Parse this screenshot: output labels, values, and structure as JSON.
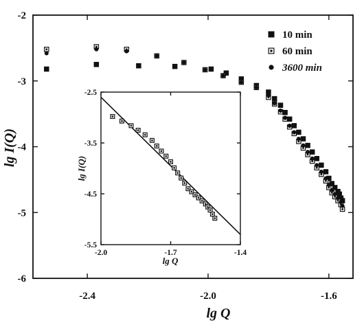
{
  "chart_data": [
    {
      "type": "scatter",
      "title": "",
      "xlabel": "lg  Q",
      "ylabel": "lg  I(Q)",
      "xlim": [
        -2.58,
        -1.52
      ],
      "ylim": [
        -6,
        -2
      ],
      "xticks": [
        "-2.4",
        "-2.0",
        "-1.6"
      ],
      "xtick_values": [
        -2.4,
        -2.0,
        -1.6
      ],
      "yticks": [
        "-2",
        "-3",
        "-4",
        "-5",
        "-6"
      ],
      "ytick_values": [
        -2,
        -3,
        -4,
        -5,
        -6
      ],
      "legend": "top-right",
      "series": [
        {
          "name": "10 min",
          "marker": "square-filled",
          "x": [
            -2.535,
            -2.37,
            -2.23,
            -2.11,
            -1.99,
            -1.94,
            -1.89,
            -1.84,
            -1.8,
            -1.78,
            -1.76,
            -1.745,
            -1.73,
            -1.715,
            -1.7,
            -1.685,
            -1.67,
            -1.655,
            -1.64,
            -1.625,
            -1.61,
            -1.6,
            -1.59,
            -1.58,
            -1.57,
            -1.565,
            -1.56,
            -1.555
          ],
          "y": [
            -2.82,
            -2.75,
            -2.77,
            -2.78,
            -2.82,
            -2.88,
            -2.97,
            -3.07,
            -3.17,
            -3.27,
            -3.37,
            -3.48,
            -3.58,
            -3.68,
            -3.78,
            -3.88,
            -3.98,
            -4.08,
            -4.18,
            -4.28,
            -4.38,
            -4.48,
            -4.56,
            -4.62,
            -4.68,
            -4.72,
            -4.78,
            -4.82
          ]
        },
        {
          "name": "60 min",
          "marker": "square-open",
          "x": [
            -2.535,
            -2.37,
            -2.27,
            -2.17,
            -2.08,
            -2.01,
            -1.95,
            -1.89,
            -1.84,
            -1.8,
            -1.78,
            -1.76,
            -1.745,
            -1.73,
            -1.715,
            -1.7,
            -1.685,
            -1.67,
            -1.655,
            -1.64,
            -1.625,
            -1.61,
            -1.6,
            -1.59,
            -1.58,
            -1.57,
            -1.56,
            -1.555
          ],
          "y": [
            -2.52,
            -2.48,
            -2.52,
            -2.62,
            -2.72,
            -2.83,
            -2.92,
            -3.02,
            -3.1,
            -3.25,
            -3.35,
            -3.47,
            -3.58,
            -3.7,
            -3.8,
            -3.92,
            -4.02,
            -4.12,
            -4.22,
            -4.32,
            -4.42,
            -4.52,
            -4.62,
            -4.7,
            -4.76,
            -4.82,
            -4.88,
            -4.95
          ]
        },
        {
          "name": "3600 min",
          "marker": "circle-filled",
          "x": [
            -2.535,
            -2.37,
            -2.27,
            -2.17,
            -2.08,
            -2.01,
            -1.95,
            -1.89,
            -1.84,
            -1.8,
            -1.78,
            -1.76,
            -1.745,
            -1.73,
            -1.715,
            -1.7,
            -1.685,
            -1.67,
            -1.655,
            -1.64,
            -1.625,
            -1.61,
            -1.6,
            -1.59,
            -1.58,
            -1.57,
            -1.56,
            -1.555
          ],
          "y": [
            -2.58,
            -2.52,
            -2.55,
            -2.62,
            -2.72,
            -2.83,
            -2.92,
            -3.02,
            -3.1,
            -3.22,
            -3.34,
            -3.45,
            -3.56,
            -3.68,
            -3.78,
            -3.88,
            -3.98,
            -4.08,
            -4.18,
            -4.28,
            -4.38,
            -4.48,
            -4.58,
            -4.66,
            -4.72,
            -4.78,
            -4.84,
            -4.9
          ]
        }
      ]
    },
    {
      "type": "scatter",
      "title": "",
      "xlabel": "lg  Q",
      "ylabel": "lg I(Q)",
      "xlim": [
        -2.0,
        -1.4
      ],
      "ylim": [
        -5.5,
        -2.5
      ],
      "xticks": [
        "-2.0",
        "-1.7",
        "-1.4"
      ],
      "xtick_values": [
        -2.0,
        -1.7,
        -1.4
      ],
      "yticks": [
        "-2.5",
        "-3.5",
        "-4.5",
        "-5.5"
      ],
      "ytick_values": [
        -2.5,
        -3.5,
        -4.5,
        -5.5
      ],
      "series": [
        {
          "marker": "square-open",
          "x": [
            -1.95,
            -1.91,
            -1.87,
            -1.84,
            -1.81,
            -1.78,
            -1.76,
            -1.74,
            -1.72,
            -1.7,
            -1.685,
            -1.67,
            -1.655,
            -1.64,
            -1.625,
            -1.61,
            -1.595,
            -1.58,
            -1.565,
            -1.55,
            -1.54,
            -1.53,
            -1.52,
            -1.51
          ],
          "y": [
            -2.98,
            -3.07,
            -3.16,
            -3.25,
            -3.34,
            -3.45,
            -3.56,
            -3.66,
            -3.76,
            -3.87,
            -3.99,
            -4.09,
            -4.19,
            -4.29,
            -4.4,
            -4.46,
            -4.52,
            -4.58,
            -4.64,
            -4.7,
            -4.76,
            -4.82,
            -4.9,
            -4.98
          ]
        }
      ],
      "fit_line": {
        "x": [
          -2.0,
          -1.4
        ],
        "y": [
          -2.6,
          -5.3
        ]
      }
    }
  ]
}
